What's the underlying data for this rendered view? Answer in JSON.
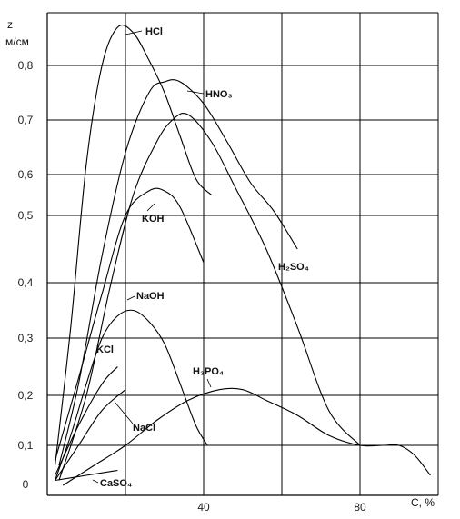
{
  "chart_data": {
    "type": "line",
    "title": "",
    "ylabel": "z, м/см",
    "xlabel": "C, %",
    "ylabel_lines": [
      "z",
      "м/см"
    ],
    "xlim": [
      0,
      100
    ],
    "ylim": [
      0,
      0.9
    ],
    "x_ticks": [
      {
        "value": 40,
        "label": "40"
      },
      {
        "value": 80,
        "label": "80"
      }
    ],
    "y_ticks": [
      {
        "value": 0,
        "label": "0"
      },
      {
        "value": 0.1,
        "label": "0,1"
      },
      {
        "value": 0.2,
        "label": "0,2"
      },
      {
        "value": 0.3,
        "label": "0,3"
      },
      {
        "value": 0.4,
        "label": "0,4"
      },
      {
        "value": 0.5,
        "label": "0,5"
      },
      {
        "value": 0.6,
        "label": "0,6"
      },
      {
        "value": 0.7,
        "label": "0,7"
      },
      {
        "value": 0.8,
        "label": "0,8"
      }
    ],
    "grid": true,
    "series": [
      {
        "name": "HCl",
        "label": "HCl",
        "x": [
          2,
          6,
          10,
          14,
          18,
          22,
          26,
          30,
          34,
          38,
          42
        ],
        "y": [
          0.06,
          0.32,
          0.62,
          0.8,
          0.87,
          0.86,
          0.81,
          0.75,
          0.67,
          0.59,
          0.55
        ]
      },
      {
        "name": "HNO3",
        "label": "HNO₃",
        "x": [
          3,
          8,
          14,
          20,
          26,
          30,
          34,
          40,
          46,
          52,
          58,
          64
        ],
        "y": [
          0.06,
          0.22,
          0.44,
          0.64,
          0.75,
          0.77,
          0.77,
          0.73,
          0.66,
          0.58,
          0.51,
          0.45
        ]
      },
      {
        "name": "H2SO4",
        "label": "H₂SO₄",
        "x": [
          3,
          10,
          16,
          22,
          28,
          32,
          36,
          42,
          48,
          56,
          64,
          72,
          80
        ],
        "y": [
          0.03,
          0.2,
          0.39,
          0.55,
          0.66,
          0.7,
          0.71,
          0.66,
          0.57,
          0.45,
          0.32,
          0.17,
          0.1
        ]
      },
      {
        "name": "KOH",
        "label": "KOH",
        "x": [
          2,
          8,
          14,
          20,
          26,
          30,
          34,
          40
        ],
        "y": [
          0.07,
          0.23,
          0.38,
          0.5,
          0.56,
          0.56,
          0.52,
          0.43
        ]
      },
      {
        "name": "NaOH",
        "label": "NaOH",
        "x": [
          2,
          6,
          10,
          14,
          18,
          22,
          26,
          30,
          34,
          38,
          41
        ],
        "y": [
          0.03,
          0.12,
          0.22,
          0.3,
          0.34,
          0.35,
          0.33,
          0.29,
          0.22,
          0.14,
          0.1
        ]
      },
      {
        "name": "KCl",
        "label": "KCl",
        "x": [
          2,
          8,
          14,
          18
        ],
        "y": [
          0.04,
          0.14,
          0.22,
          0.25
        ]
      },
      {
        "name": "NaCl",
        "label": "NaCl",
        "x": [
          2,
          8,
          14,
          20
        ],
        "y": [
          0.03,
          0.1,
          0.17,
          0.21
        ]
      },
      {
        "name": "H3PO4",
        "label": "H₃PO₄",
        "x": [
          4,
          12,
          20,
          28,
          36,
          44,
          50,
          56,
          64,
          72,
          80,
          86,
          90,
          94,
          98
        ],
        "y": [
          0.02,
          0.06,
          0.1,
          0.15,
          0.19,
          0.21,
          0.21,
          0.19,
          0.16,
          0.12,
          0.1,
          0.1,
          0.1,
          0.08,
          0.04
        ]
      },
      {
        "name": "CaSO4",
        "label": "CaSO₄",
        "x": [
          2,
          10,
          18
        ],
        "y": [
          0.03,
          0.04,
          0.05
        ]
      }
    ]
  }
}
